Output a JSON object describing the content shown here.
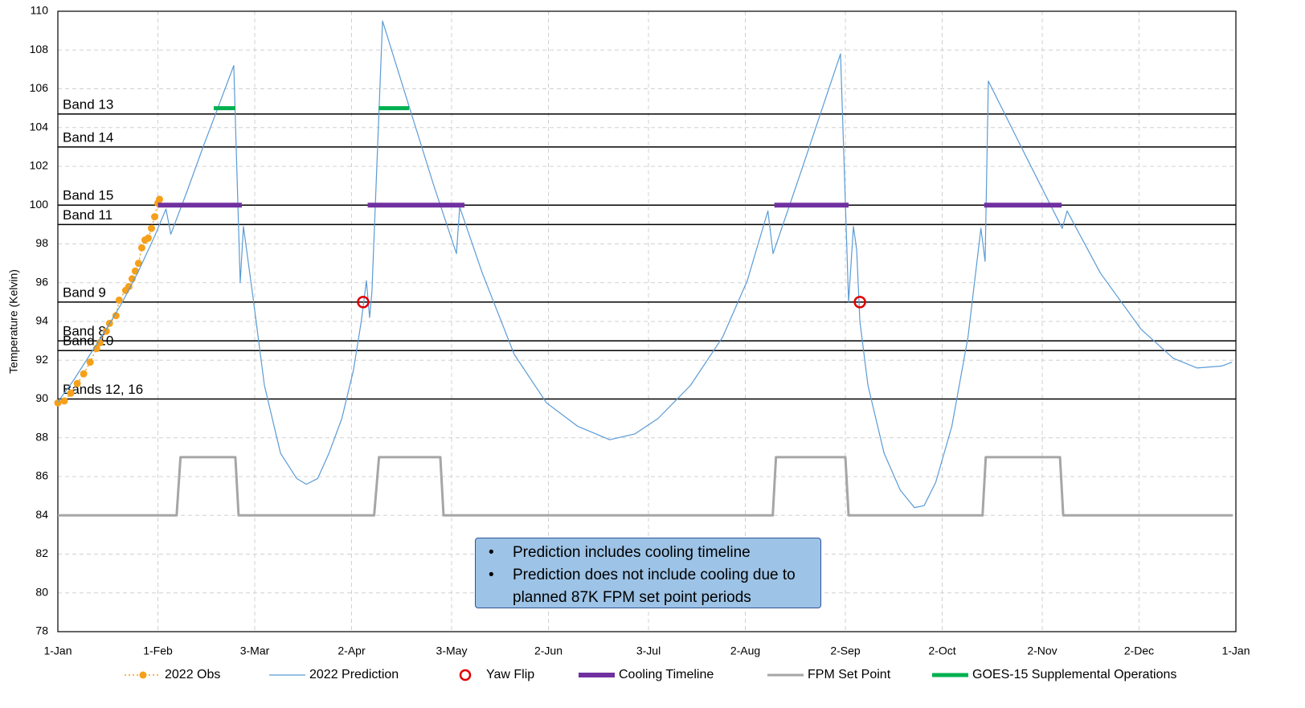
{
  "chart_data": {
    "type": "line",
    "y_label": "Temperature (Kelvin)",
    "xlim": [
      0,
      365
    ],
    "xticks": [
      {
        "value": 0,
        "label": "1-Jan"
      },
      {
        "value": 31,
        "label": "1-Feb"
      },
      {
        "value": 61,
        "label": "3-Mar"
      },
      {
        "value": 91,
        "label": "2-Apr"
      },
      {
        "value": 122,
        "label": "3-May"
      },
      {
        "value": 152,
        "label": "2-Jun"
      },
      {
        "value": 183,
        "label": "3-Jul"
      },
      {
        "value": 213,
        "label": "2-Aug"
      },
      {
        "value": 244,
        "label": "2-Sep"
      },
      {
        "value": 274,
        "label": "2-Oct"
      },
      {
        "value": 305,
        "label": "2-Nov"
      },
      {
        "value": 335,
        "label": "2-Dec"
      },
      {
        "value": 365,
        "label": "1-Jan"
      }
    ],
    "ylim": [
      78,
      110
    ],
    "yticks": [
      78,
      80,
      82,
      84,
      86,
      88,
      90,
      92,
      94,
      96,
      98,
      100,
      102,
      104,
      106,
      108,
      110
    ],
    "grid": true,
    "bands": [
      {
        "label": "Band 13",
        "value": 104.7
      },
      {
        "label": "Band 14",
        "value": 103
      },
      {
        "label": "Band 15",
        "value": 100
      },
      {
        "label": "Band 11",
        "value": 99
      },
      {
        "label": "Band 9",
        "value": 95
      },
      {
        "label": "Band 8",
        "value": 93
      },
      {
        "label": "Band 10",
        "value": 92.5
      },
      {
        "label": "Bands 12, 16",
        "value": 90
      }
    ],
    "series": [
      {
        "name": "2022 Obs",
        "color": "#f5a01a",
        "style": "dotted",
        "markers": true,
        "line_width": 1.5,
        "x": [
          0,
          2,
          4,
          6,
          8,
          10,
          12,
          13,
          15,
          16,
          18,
          19,
          21,
          22,
          23,
          24,
          25,
          26,
          27,
          28,
          29,
          30,
          31,
          31.5
        ],
        "values": [
          89.8,
          89.9,
          90.3,
          90.8,
          91.3,
          91.9,
          92.6,
          92.9,
          93.5,
          93.9,
          94.3,
          95.1,
          95.6,
          95.8,
          96.2,
          96.6,
          97.0,
          97.8,
          98.2,
          98.3,
          98.8,
          99.4,
          100.1,
          100.3
        ]
      },
      {
        "name": "2022 Prediction",
        "color": "#5b9bd5",
        "style": "solid",
        "line_width": 1.2,
        "x": [
          0,
          5,
          10,
          15,
          20,
          25,
          30,
          33.5,
          35,
          40,
          45,
          50,
          54.5,
          56.5,
          57.5,
          60.5,
          64,
          69,
          74,
          77,
          80.5,
          84,
          88,
          91.6,
          94,
          95.6,
          96.6,
          97.3,
          100.6,
          109,
          116.5,
          123.5,
          124.5,
          131.5,
          141.4,
          151.4,
          161,
          171,
          178.8,
          186,
          196,
          206,
          213.6,
          220,
          221.6,
          230,
          242.5,
          245,
          246.5,
          247.5,
          248.5,
          251,
          256,
          261,
          265.4,
          268.4,
          272,
          277,
          282,
          286,
          287.3,
          288.3,
          300,
          311.2,
          312.7,
          323,
          335.6,
          345.6,
          353,
          360.6,
          363.8
        ],
        "values": [
          89.85,
          91.0,
          92.3,
          93.6,
          95.0,
          96.6,
          98.4,
          99.8,
          98.5,
          100.7,
          103.0,
          105.2,
          107.2,
          96.0,
          98.9,
          95.2,
          90.7,
          87.2,
          85.9,
          85.6,
          85.9,
          87.2,
          89.0,
          91.5,
          94.0,
          96.1,
          94.2,
          95.5,
          109.5,
          105.0,
          101.0,
          97.5,
          99.9,
          96.5,
          92.3,
          89.8,
          88.6,
          87.9,
          88.2,
          89.0,
          90.7,
          93.2,
          96.1,
          99.7,
          97.5,
          101.6,
          107.8,
          95.0,
          98.9,
          97.7,
          94.0,
          90.7,
          87.2,
          85.3,
          84.4,
          84.5,
          85.7,
          88.6,
          93.2,
          98.8,
          97.1,
          106.4,
          102.5,
          98.8,
          99.7,
          96.5,
          93.6,
          92.1,
          91.6,
          91.7,
          91.9
        ]
      },
      {
        "name": "Yaw Flip",
        "color": "#e00000",
        "style": "open-circle",
        "line_width": 2.5,
        "x": [
          94.6,
          248.5
        ],
        "values": [
          95,
          95
        ]
      },
      {
        "name": "Cooling Timeline",
        "color": "#7030a0",
        "style": "solid",
        "line_width": 6,
        "x": [
          31,
          57,
          null,
          96,
          126,
          null,
          222,
          245,
          null,
          287,
          311
        ],
        "values": [
          100,
          100,
          null,
          100,
          100,
          null,
          100,
          100,
          null,
          100,
          100
        ]
      },
      {
        "name": "FPM Set Point",
        "color": "#a6a6a6",
        "style": "solid",
        "line_width": 3,
        "x": [
          0,
          36.8,
          38,
          55,
          56,
          98,
          99.5,
          118.5,
          119.5,
          221.5,
          222.5,
          244,
          245,
          286.5,
          287.5,
          310.5,
          311.5,
          364
        ],
        "values": [
          84,
          84,
          87,
          87,
          84,
          84,
          87,
          87,
          84,
          84,
          87,
          87,
          84,
          84,
          87,
          87,
          84,
          84
        ]
      },
      {
        "name": "GOES-15 Supplemental Operations",
        "color": "#00b050",
        "style": "solid",
        "line_width": 5,
        "x": [
          48.3,
          55,
          null,
          99.4,
          108.8
        ],
        "values": [
          105,
          105,
          null,
          105,
          105
        ]
      }
    ],
    "annotation": [
      "Prediction includes cooling timeline",
      "Prediction does not include cooling due to planned 87K FPM set point periods"
    ]
  }
}
